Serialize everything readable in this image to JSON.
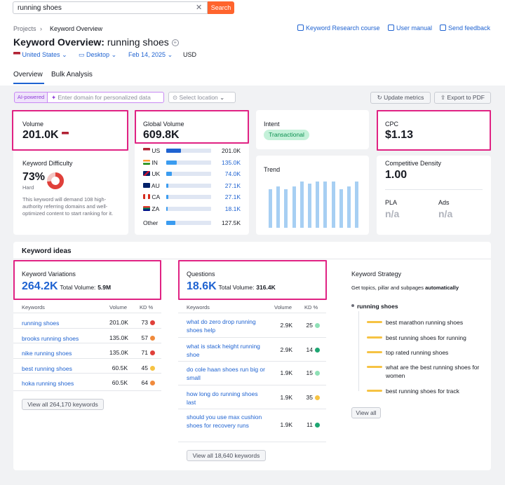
{
  "search": {
    "value": "running shoes",
    "button": "Search"
  },
  "breadcrumb": {
    "projects": "Projects",
    "sep": "›",
    "current": "Keyword Overview"
  },
  "header": {
    "title": "Keyword Overview:",
    "query": "running shoes",
    "links": [
      "Keyword Research course",
      "User manual",
      "Send feedback"
    ]
  },
  "filters": {
    "country": "United States",
    "device": "Desktop",
    "date": "Feb 14, 2025",
    "currency": "USD"
  },
  "tabs": [
    "Overview",
    "Bulk Analysis"
  ],
  "toolbar": {
    "ai": "AI-powered",
    "domain_placeholder": "Enter domain for personalized data",
    "location": "Select location",
    "update": "Update metrics",
    "export": "Export to PDF"
  },
  "volume": {
    "label": "Volume",
    "value": "201.0K"
  },
  "kd": {
    "label": "Keyword Difficulty",
    "value": "73%",
    "level": "Hard",
    "percent": 73,
    "desc": "This keyword will demand 108 high-authority referring domains and well-optimized content to start ranking for it."
  },
  "global": {
    "label": "Global Volume",
    "value": "609.8K",
    "rows": [
      {
        "code": "US",
        "value": "201.0K",
        "share": 0.38,
        "link": false
      },
      {
        "code": "IN",
        "value": "135.0K",
        "share": 0.26,
        "link": true
      },
      {
        "code": "UK",
        "value": "74.0K",
        "share": 0.14,
        "link": true
      },
      {
        "code": "AU",
        "value": "27.1K",
        "share": 0.05,
        "link": true
      },
      {
        "code": "CA",
        "value": "27.1K",
        "share": 0.05,
        "link": true
      },
      {
        "code": "ZA",
        "value": "18.1K",
        "share": 0.035,
        "link": true
      }
    ],
    "other_label": "Other",
    "other_value": "127.5K",
    "other_share": 0.24
  },
  "intent": {
    "label": "Intent",
    "value": "Transactional"
  },
  "trend": {
    "label": "Trend",
    "values": [
      0.78,
      0.84,
      0.78,
      0.84,
      0.94,
      0.9,
      0.94,
      0.94,
      0.94,
      0.78,
      0.84,
      0.94
    ]
  },
  "cpc": {
    "label": "CPC",
    "value": "$1.13"
  },
  "density": {
    "label": "Competitive Density",
    "value": "1.00",
    "pla_label": "PLA",
    "pla": "n/a",
    "ads_label": "Ads",
    "ads": "n/a"
  },
  "ideas": {
    "title": "Keyword ideas",
    "variations": {
      "label": "Keyword Variations",
      "count": "264.2K",
      "total_label": "Total Volume:",
      "total": "5.9M",
      "cols": [
        "Keywords",
        "Volume",
        "KD %"
      ],
      "rows": [
        {
          "kw": "running shoes",
          "vol": "201.0K",
          "kd": "73",
          "color": "#e0403a"
        },
        {
          "kw": "brooks running shoes",
          "vol": "135.0K",
          "kd": "57",
          "color": "#f08a3c"
        },
        {
          "kw": "nike running shoes",
          "vol": "135.0K",
          "kd": "71",
          "color": "#e0403a"
        },
        {
          "kw": "best running shoes",
          "vol": "60.5K",
          "kd": "45",
          "color": "#f6c343"
        },
        {
          "kw": "hoka running shoes",
          "vol": "60.5K",
          "kd": "64",
          "color": "#f08a3c"
        }
      ],
      "view_all": "View all 264,170 keywords"
    },
    "questions": {
      "label": "Questions",
      "count": "18.6K",
      "total_label": "Total Volume:",
      "total": "316.4K",
      "cols": [
        "Keywords",
        "Volume",
        "KD %"
      ],
      "rows": [
        {
          "kw": "what do zero drop running shoes help",
          "vol": "2.9K",
          "kd": "25",
          "color": "#8fe0b6"
        },
        {
          "kw": "what is stack height running shoe",
          "vol": "2.9K",
          "kd": "14",
          "color": "#1ea672"
        },
        {
          "kw": "do cole haan shoes run big or small",
          "vol": "1.9K",
          "kd": "15",
          "color": "#8fe0b6"
        },
        {
          "kw": "how long do running shoes last",
          "vol": "1.9K",
          "kd": "35",
          "color": "#f6c343"
        },
        {
          "kw": "should you use max cushion shoes for recovery runs",
          "vol": "1.9K",
          "kd": "11",
          "color": "#1ea672"
        }
      ],
      "view_all": "View all 18,640 keywords"
    },
    "strategy": {
      "label": "Keyword Strategy",
      "desc": "Get topics, pillar and subpages",
      "desc_bold": "automatically",
      "root": "running shoes",
      "items": [
        "best marathon running shoes",
        "best running shoes for running",
        "top rated running shoes",
        "what are the best running shoes for women",
        "best running shoes for track"
      ],
      "view_all": "View all"
    }
  },
  "colors": {
    "accent": "#1f63d1",
    "highlight": "#e02283",
    "search": "#ff642d"
  }
}
